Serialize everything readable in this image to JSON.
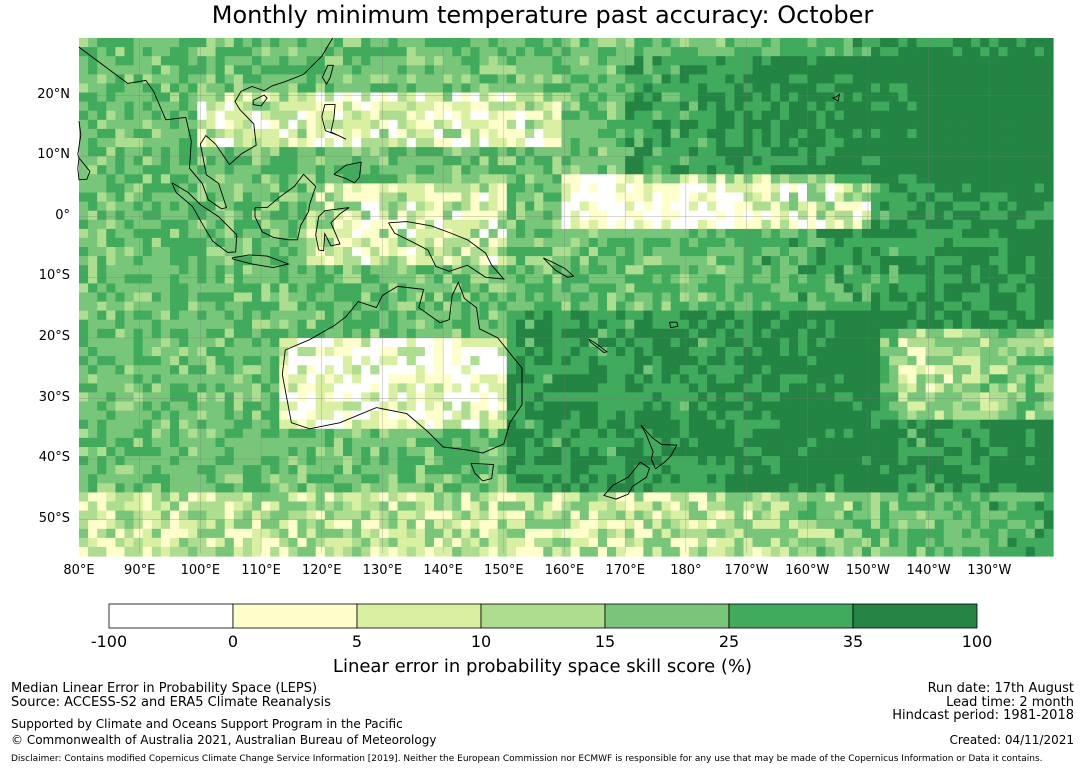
{
  "title": "Monthly minimum temperature past accuracy: October",
  "map": {
    "lat_labels": [
      "20°N",
      "10°N",
      "0°",
      "10°S",
      "20°S",
      "30°S",
      "40°S",
      "50°S"
    ],
    "lon_labels": [
      "80°E",
      "90°E",
      "100°E",
      "110°E",
      "120°E",
      "130°E",
      "140°E",
      "150°E",
      "160°E",
      "170°E",
      "180°",
      "170°W",
      "160°W",
      "150°W",
      "140°W",
      "130°W"
    ],
    "extent": {
      "lon": [
        80,
        240
      ],
      "lat": [
        -55.5,
        29.5
      ]
    }
  },
  "colorbar": {
    "ticks": [
      "-100",
      "0",
      "5",
      "10",
      "15",
      "25",
      "35",
      "100"
    ],
    "colors": [
      "#ffffff",
      "#ffffcc",
      "#d9f0a3",
      "#addd8e",
      "#78c679",
      "#41ab5d",
      "#238443"
    ],
    "label": "Linear error in probability space skill score (%)"
  },
  "footer": {
    "left": {
      "line1": "Median Linear Error in Probability Space (LEPS)",
      "line2": "Source: ACCESS-S2 and ERA5 Climate Reanalysis",
      "line3": "Supported by Climate and Oceans Support Program in the Pacific",
      "line4": "© Commonwealth of Australia 2021, Australian Bureau of Meteorology"
    },
    "right": {
      "run_date": "Run date: 17th August",
      "lead_time": "Lead time: 2 month",
      "hindcast": "Hindcast period: 1981-2018",
      "created": "Created: 04/11/2021"
    },
    "disclaimer": "Disclaimer: Contains modified Copernicus Climate Change Service Information [2019]. Neither the European Commission nor ECMWF is responsible for any use that may be made of the Copernicus Information or Data it contains."
  }
}
